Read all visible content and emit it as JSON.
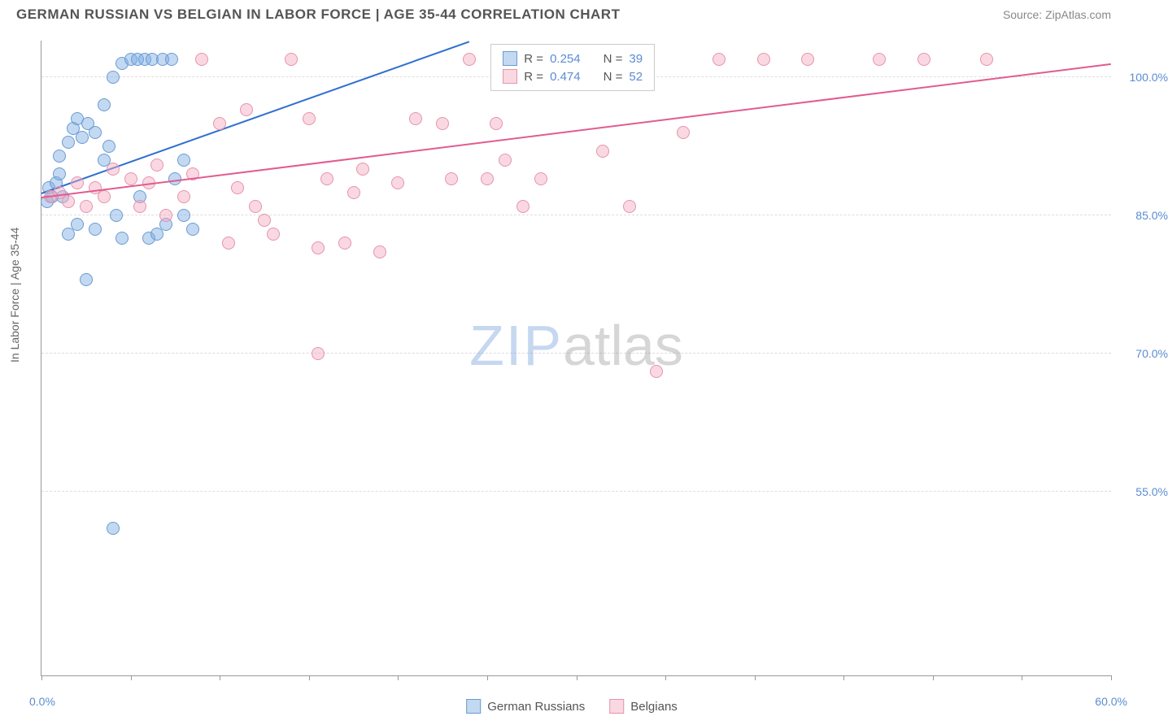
{
  "title": "GERMAN RUSSIAN VS BELGIAN IN LABOR FORCE | AGE 35-44 CORRELATION CHART",
  "source": "Source: ZipAtlas.com",
  "y_axis_label": "In Labor Force | Age 35-44",
  "watermark_zip": "ZIP",
  "watermark_atlas": "atlas",
  "chart": {
    "type": "scatter",
    "xlim": [
      0,
      60
    ],
    "ylim": [
      35,
      104
    ],
    "x_ticks": [
      0,
      5,
      10,
      15,
      20,
      25,
      30,
      35,
      40,
      45,
      50,
      55,
      60
    ],
    "x_tick_labels": {
      "left": "0.0%",
      "right": "60.0%"
    },
    "y_gridlines": [
      55,
      70,
      85,
      100
    ],
    "y_tick_labels": [
      "55.0%",
      "70.0%",
      "85.0%",
      "100.0%"
    ],
    "background_color": "#ffffff",
    "grid_color": "#dddddd",
    "axis_color": "#999999",
    "series": [
      {
        "name": "German Russians",
        "fill": "rgba(123,170,227,0.45)",
        "stroke": "#6a9bd1",
        "trend_color": "#2f6fd0",
        "marker_radius": 8,
        "trend": {
          "x1": 0,
          "y1": 87.5,
          "x2": 24,
          "y2": 104
        },
        "points": [
          [
            0.3,
            86.5
          ],
          [
            0.4,
            88.0
          ],
          [
            0.6,
            87.0
          ],
          [
            0.8,
            88.5
          ],
          [
            1.0,
            89.5
          ],
          [
            1.2,
            87.0
          ],
          [
            1.0,
            91.5
          ],
          [
            1.5,
            93.0
          ],
          [
            1.8,
            94.5
          ],
          [
            2.0,
            95.5
          ],
          [
            2.3,
            93.5
          ],
          [
            2.6,
            95.0
          ],
          [
            2.0,
            84.0
          ],
          [
            1.5,
            83.0
          ],
          [
            3.5,
            91.0
          ],
          [
            3.8,
            92.5
          ],
          [
            3.0,
            94.0
          ],
          [
            3.5,
            97.0
          ],
          [
            4.0,
            100.0
          ],
          [
            4.5,
            101.5
          ],
          [
            5.0,
            102.0
          ],
          [
            5.4,
            102.0
          ],
          [
            5.8,
            102.0
          ],
          [
            6.2,
            102.0
          ],
          [
            6.8,
            102.0
          ],
          [
            7.3,
            102.0
          ],
          [
            2.5,
            78.0
          ],
          [
            3.0,
            83.5
          ],
          [
            4.2,
            85.0
          ],
          [
            4.5,
            82.5
          ],
          [
            5.5,
            87.0
          ],
          [
            6.0,
            82.5
          ],
          [
            6.5,
            83.0
          ],
          [
            7.0,
            84.0
          ],
          [
            8.0,
            85.0
          ],
          [
            8.5,
            83.5
          ],
          [
            7.5,
            89.0
          ],
          [
            8.0,
            91.0
          ],
          [
            4.0,
            51.0
          ]
        ]
      },
      {
        "name": "Belgians",
        "fill": "rgba(243,169,191,0.45)",
        "stroke": "#e593af",
        "trend_color": "#e05c8f",
        "marker_radius": 8,
        "trend": {
          "x1": 0,
          "y1": 87.0,
          "x2": 60,
          "y2": 101.5
        },
        "points": [
          [
            0.5,
            87.0
          ],
          [
            1.0,
            87.5
          ],
          [
            1.5,
            86.5
          ],
          [
            2.0,
            88.5
          ],
          [
            2.5,
            86.0
          ],
          [
            3.0,
            88.0
          ],
          [
            3.5,
            87.0
          ],
          [
            4.0,
            90.0
          ],
          [
            5.0,
            89.0
          ],
          [
            5.5,
            86.0
          ],
          [
            6.0,
            88.5
          ],
          [
            6.5,
            90.5
          ],
          [
            7.0,
            85.0
          ],
          [
            8.0,
            87.0
          ],
          [
            8.5,
            89.5
          ],
          [
            9.0,
            102.0
          ],
          [
            10.0,
            95.0
          ],
          [
            10.5,
            82.0
          ],
          [
            11.0,
            88.0
          ],
          [
            11.5,
            96.5
          ],
          [
            12.0,
            86.0
          ],
          [
            12.5,
            84.5
          ],
          [
            13.0,
            83.0
          ],
          [
            14.0,
            102.0
          ],
          [
            15.0,
            95.5
          ],
          [
            15.5,
            81.5
          ],
          [
            16.0,
            89.0
          ],
          [
            17.0,
            82.0
          ],
          [
            17.5,
            87.5
          ],
          [
            18.0,
            90.0
          ],
          [
            19.0,
            81.0
          ],
          [
            20.0,
            88.5
          ],
          [
            21.0,
            95.5
          ],
          [
            15.5,
            70.0
          ],
          [
            22.5,
            95.0
          ],
          [
            23.0,
            89.0
          ],
          [
            24.0,
            102.0
          ],
          [
            25.0,
            89.0
          ],
          [
            25.5,
            95.0
          ],
          [
            26.0,
            91.0
          ],
          [
            27.0,
            86.0
          ],
          [
            28.0,
            89.0
          ],
          [
            31.5,
            92.0
          ],
          [
            33.0,
            86.0
          ],
          [
            36.0,
            94.0
          ],
          [
            38.0,
            102.0
          ],
          [
            40.5,
            102.0
          ],
          [
            43.0,
            102.0
          ],
          [
            47.0,
            102.0
          ],
          [
            49.5,
            102.0
          ],
          [
            53.0,
            102.0
          ],
          [
            34.5,
            68.0
          ]
        ]
      }
    ]
  },
  "legend_top": {
    "rows": [
      {
        "swatch_fill": "rgba(123,170,227,0.45)",
        "swatch_stroke": "#6a9bd1",
        "r_label": "R =",
        "r_val": "0.254",
        "n_label": "N =",
        "n_val": "39"
      },
      {
        "swatch_fill": "rgba(243,169,191,0.45)",
        "swatch_stroke": "#e593af",
        "r_label": "R =",
        "r_val": "0.474",
        "n_label": "N =",
        "n_val": "52"
      }
    ]
  },
  "legend_bottom": [
    {
      "swatch_fill": "rgba(123,170,227,0.45)",
      "swatch_stroke": "#6a9bd1",
      "label": "German Russians"
    },
    {
      "swatch_fill": "rgba(243,169,191,0.45)",
      "swatch_stroke": "#e593af",
      "label": "Belgians"
    }
  ]
}
